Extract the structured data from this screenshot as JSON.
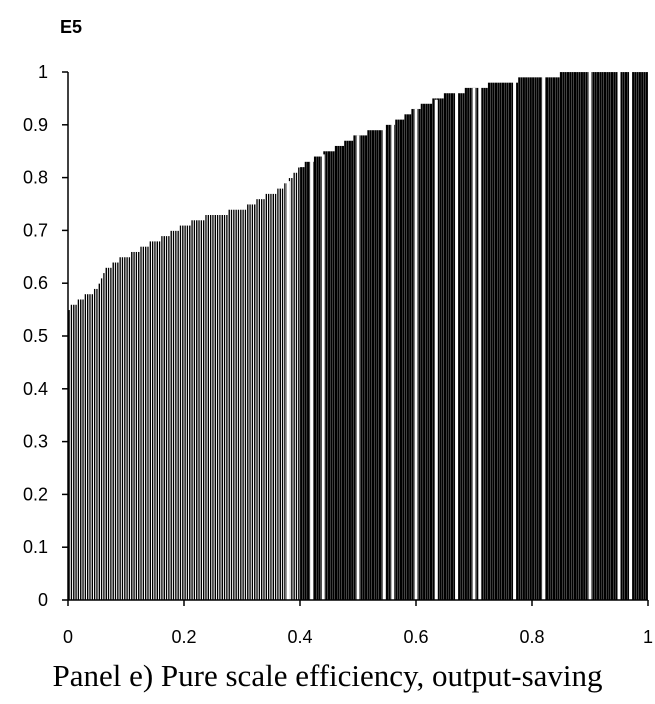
{
  "caption": "Panel e) Pure scale efficiency, output-saving",
  "chart_data": {
    "type": "bar",
    "ylabel": "E5",
    "xlabel": "",
    "xlim": [
      0,
      1
    ],
    "ylim": [
      0,
      1
    ],
    "xticks": [
      "0",
      "0.2",
      "0.4",
      "0.6",
      "0.8",
      "1"
    ],
    "yticks": [
      "0",
      "0.1",
      "0.2",
      "0.3",
      "0.4",
      "0.5",
      "0.6",
      "0.7",
      "0.8",
      "0.9",
      "1"
    ],
    "grid": false,
    "bar_fill": "#000000",
    "bar_stroke": "#ffffff",
    "bar_count": 250,
    "curve": {
      "x": [
        0,
        0.02,
        0.05,
        0.06,
        0.08,
        0.1,
        0.15,
        0.2,
        0.25,
        0.3,
        0.35,
        0.37,
        0.4,
        0.45,
        0.5,
        0.55,
        0.6,
        0.65,
        0.7,
        0.75,
        0.8,
        0.85,
        0.9,
        1.0
      ],
      "y": [
        0.55,
        0.57,
        0.59,
        0.62,
        0.64,
        0.65,
        0.68,
        0.71,
        0.73,
        0.74,
        0.77,
        0.78,
        0.82,
        0.85,
        0.88,
        0.895,
        0.93,
        0.955,
        0.97,
        0.98,
        0.99,
        0.995,
        1.0,
        1.0
      ]
    },
    "white_gaps_x": [
      0.38,
      0.42,
      0.44,
      0.5,
      0.545,
      0.56,
      0.6,
      0.635,
      0.67,
      0.7,
      0.71,
      0.77,
      0.82,
      0.9,
      0.95,
      0.97
    ]
  },
  "colors": {
    "background": "#ffffff",
    "foreground": "#000000"
  }
}
